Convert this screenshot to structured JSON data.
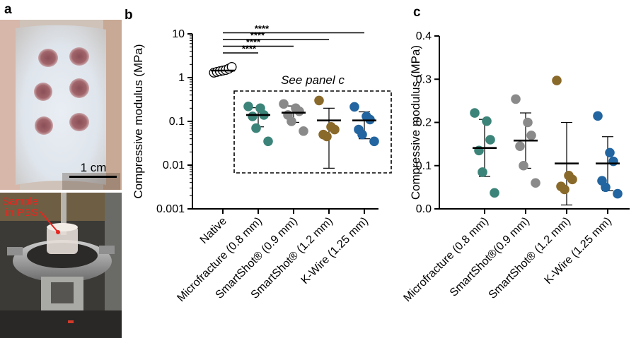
{
  "panel_labels": {
    "a": "a",
    "b": "b",
    "c": "c"
  },
  "photo": {
    "scale_bar_label": "1 cm",
    "sample_label_line1": "Sample",
    "sample_label_line2": "in PBS",
    "sample_label_color": "#e8251f"
  },
  "colors": {
    "microfracture": "#3c8479",
    "smartshot09": "#8a8a8a",
    "smartshot12": "#8a6a2a",
    "kwire": "#2265a0"
  },
  "chart_data": [
    {
      "id": "b",
      "type": "scatter",
      "yscale": "log",
      "ylabel": "Compressive modulus (MPa)",
      "ylim": [
        0.001,
        10
      ],
      "yticks": [
        "0.001",
        "0.01",
        "0.1",
        "1",
        "10"
      ],
      "categories": [
        "Native",
        "Microfracture (0.8 mm)",
        "SmartShot® (0.9 mm)",
        "SmartShot® (1.2 mm)",
        "K-Wire (1.25 mm)"
      ],
      "series": [
        {
          "name": "Native",
          "color_key": "native",
          "hollow": true,
          "mean": 1.45,
          "sd": [
            1.3,
            1.6
          ],
          "points": [
            1.3,
            1.35,
            1.4,
            1.45,
            1.5,
            1.6,
            1.75
          ]
        },
        {
          "name": "Microfracture (0.8 mm)",
          "color_key": "microfracture",
          "mean": 0.14,
          "sd": [
            0.075,
            0.205
          ],
          "points": [
            0.22,
            0.2,
            0.14,
            0.13,
            0.07,
            0.035
          ]
        },
        {
          "name": "SmartShot® (0.9 mm)",
          "color_key": "smartshot09",
          "mean": 0.158,
          "sd": [
            0.095,
            0.225
          ],
          "points": [
            0.25,
            0.2,
            0.17,
            0.14,
            0.1,
            0.06
          ]
        },
        {
          "name": "SmartShot® (1.2 mm)",
          "color_key": "smartshot12",
          "mean": 0.105,
          "sd": [
            0.0085,
            0.2
          ],
          "points": [
            0.3,
            0.075,
            0.065,
            0.05,
            0.045
          ]
        },
        {
          "name": "K-Wire (1.25 mm)",
          "color_key": "kwire",
          "mean": 0.105,
          "sd": [
            0.04,
            0.165
          ],
          "points": [
            0.215,
            0.13,
            0.11,
            0.065,
            0.05,
            0.035
          ]
        }
      ],
      "significance": [
        {
          "from": 0,
          "to": 1,
          "label": "****"
        },
        {
          "from": 0,
          "to": 2,
          "label": "****"
        },
        {
          "from": 0,
          "to": 3,
          "label": "****"
        },
        {
          "from": 0,
          "to": 4,
          "label": "****"
        }
      ],
      "annotation": "See panel c"
    },
    {
      "id": "c",
      "type": "scatter",
      "yscale": "linear",
      "ylabel": "Compressive modulus (MPa)",
      "ylim": [
        0,
        0.4
      ],
      "yticks": [
        "0.0",
        "0.1",
        "0.2",
        "0.3",
        "0.4"
      ],
      "categories": [
        "Microfracture (0.8 mm)",
        "SmartShot®(0.9 mm)",
        "SmartShot® (1.2 mm)",
        "K-Wire (1.25 mm)"
      ],
      "series": [
        {
          "name": "Microfracture (0.8 mm)",
          "color_key": "microfracture",
          "mean": 0.141,
          "sd": [
            0.075,
            0.207
          ],
          "points": [
            0.222,
            0.203,
            0.16,
            0.135,
            0.085,
            0.037
          ]
        },
        {
          "name": "SmartShot®(0.9 mm)",
          "color_key": "smartshot09",
          "mean": 0.158,
          "sd": [
            0.094,
            0.222
          ],
          "points": [
            0.254,
            0.2,
            0.17,
            0.145,
            0.1,
            0.06
          ]
        },
        {
          "name": "SmartShot® (1.2 mm)",
          "color_key": "smartshot12",
          "mean": 0.105,
          "sd": [
            0.009,
            0.2
          ],
          "points": [
            0.297,
            0.077,
            0.068,
            0.052,
            0.045
          ]
        },
        {
          "name": "K-Wire (1.25 mm)",
          "color_key": "kwire",
          "mean": 0.105,
          "sd": [
            0.042,
            0.167
          ],
          "points": [
            0.215,
            0.13,
            0.11,
            0.065,
            0.05,
            0.035
          ]
        }
      ]
    }
  ]
}
